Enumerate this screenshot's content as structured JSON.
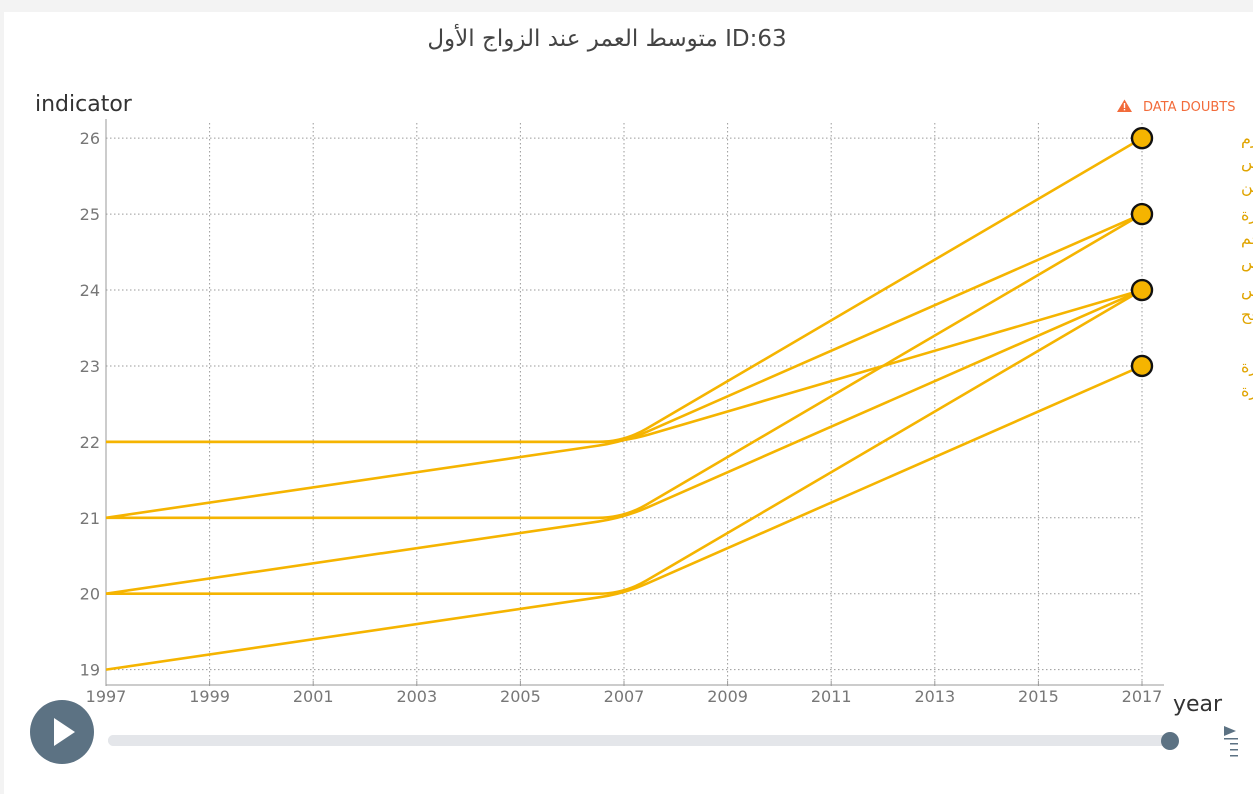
{
  "chart_data": {
    "type": "line",
    "title": "متوسط العمر عند الزواج الأول ID:63",
    "ylabel": "indicator",
    "xlabel": "year",
    "xlim": [
      1997,
      2017
    ],
    "ylim": [
      18.85,
      26.2
    ],
    "x_ticks": [
      "1997",
      "1999",
      "2001",
      "2003",
      "2005",
      "2007",
      "2009",
      "2011",
      "2013",
      "2015",
      "2017"
    ],
    "y_ticks": [
      "19",
      "20",
      "21",
      "22",
      "23",
      "24",
      "25",
      "26"
    ],
    "grid": true,
    "series_color": "#f5b400",
    "series": [
      {
        "values": [
          [
            1997,
            22
          ],
          [
            2007,
            22
          ],
          [
            2017,
            26
          ]
        ]
      },
      {
        "values": [
          [
            1997,
            21
          ],
          [
            2007,
            22
          ],
          [
            2017,
            25
          ]
        ]
      },
      {
        "values": [
          [
            1997,
            22
          ],
          [
            2007,
            22
          ],
          [
            2017,
            24
          ]
        ]
      },
      {
        "values": [
          [
            1997,
            21
          ],
          [
            2007,
            21
          ],
          [
            2017,
            25
          ]
        ]
      },
      {
        "values": [
          [
            1997,
            20
          ],
          [
            2007,
            21
          ],
          [
            2017,
            24
          ]
        ]
      },
      {
        "values": [
          [
            1997,
            20
          ],
          [
            2007,
            20
          ],
          [
            2017,
            24
          ]
        ]
      },
      {
        "values": [
          [
            1997,
            19
          ],
          [
            2007,
            20
          ],
          [
            2017,
            23
          ]
        ]
      }
    ],
    "end_labels": [
      {
        "y": 26,
        "lines": [
          "طولكرم",
          "نابلس",
          "جنين"
        ]
      },
      {
        "y": 25,
        "lines": [
          "رام الله والبيرة",
          "بيت لحم",
          "القدس"
        ]
      },
      {
        "y": 24,
        "lines": [
          "خان يونس",
          "رفح"
        ]
      },
      {
        "y": 23,
        "lines": [
          "شمال غزة",
          "غزة"
        ]
      }
    ]
  },
  "warning": {
    "label": "DATA DOUBTS",
    "icon": "warning-triangle-icon",
    "color": "#f26b3a"
  },
  "player": {
    "play_icon": "play-icon",
    "progress": 1.0,
    "speed_icon": "speed-menu-icon"
  }
}
